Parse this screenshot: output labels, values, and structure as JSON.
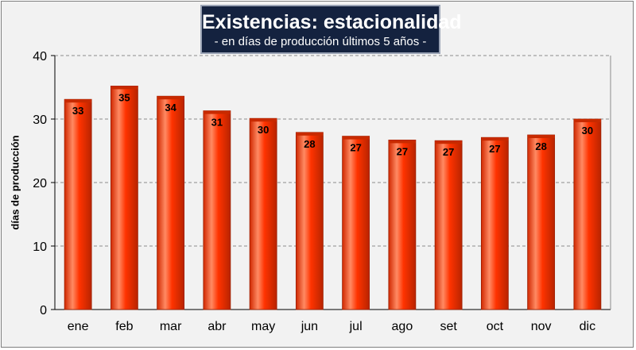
{
  "chart_data": {
    "type": "bar",
    "title": "Existencias: estacionalidad",
    "subtitle": "- en días de producción últimos 5 años -",
    "ylabel": "días de producción",
    "xlabel": "",
    "categories": [
      "ene",
      "feb",
      "mar",
      "abr",
      "may",
      "jun",
      "jul",
      "ago",
      "set",
      "oct",
      "nov",
      "dic"
    ],
    "values": [
      33.1,
      35.2,
      33.6,
      31.3,
      30.1,
      27.9,
      27.3,
      26.7,
      26.6,
      27.1,
      27.5,
      30.0
    ],
    "data_labels": [
      "33",
      "35",
      "34",
      "31",
      "30",
      "28",
      "27",
      "27",
      "27",
      "27",
      "28",
      "30"
    ],
    "ylim": [
      0,
      40
    ],
    "yticks": [
      "0",
      "10",
      "20",
      "30",
      "40"
    ],
    "grid": "horizontal dashed",
    "legend": "none",
    "colors": {
      "bar": "#ff3300",
      "bar_highlight": "#ff8a63",
      "bar_top": "#c82a00",
      "title_bg": "#14223f",
      "grid": "#8c8c8c",
      "background": "#f2f2f2"
    }
  }
}
